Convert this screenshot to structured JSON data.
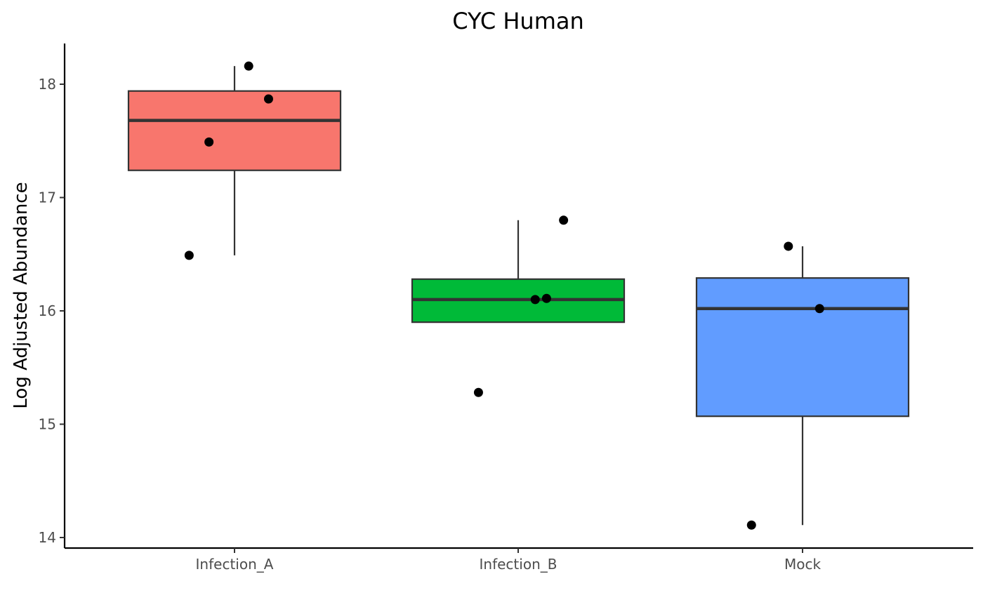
{
  "chart_data": {
    "type": "boxplot",
    "title": "CYC Human",
    "xlabel": "",
    "ylabel": "Log Adjusted Abundance",
    "ylim": [
      13.92,
      18.35
    ],
    "yticks": [
      14,
      15,
      16,
      17,
      18
    ],
    "grid": false,
    "legend": "none",
    "categories": [
      "Infection_A",
      "Infection_B",
      "Mock"
    ],
    "groups": [
      {
        "category": "Infection_A",
        "color": "#F8766D",
        "whisker_low": 16.49,
        "q1": 17.24,
        "median": 17.68,
        "q3": 17.94,
        "whisker_high": 18.16,
        "points": [
          {
            "jitter": -0.16,
            "y": 16.49
          },
          {
            "jitter": -0.09,
            "y": 17.49
          },
          {
            "jitter": 0.05,
            "y": 18.16
          },
          {
            "jitter": 0.12,
            "y": 17.87
          }
        ]
      },
      {
        "category": "Infection_B",
        "color": "#00BA38",
        "whisker_low": 15.9,
        "q1": 15.9,
        "median": 16.1,
        "q3": 16.28,
        "whisker_high": 16.8,
        "points": [
          {
            "jitter": -0.14,
            "y": 15.28
          },
          {
            "jitter": 0.06,
            "y": 16.1
          },
          {
            "jitter": 0.1,
            "y": 16.11
          },
          {
            "jitter": 0.16,
            "y": 16.8
          }
        ]
      },
      {
        "category": "Mock",
        "color": "#619CFF",
        "whisker_low": 14.11,
        "q1": 15.07,
        "median": 16.02,
        "q3": 16.29,
        "whisker_high": 16.57,
        "points": [
          {
            "jitter": -0.18,
            "y": 14.11
          },
          {
            "jitter": -0.05,
            "y": 16.57
          },
          {
            "jitter": 0.06,
            "y": 16.02
          }
        ]
      }
    ],
    "box_outline_color": "#333333",
    "point_color": "#000000"
  }
}
